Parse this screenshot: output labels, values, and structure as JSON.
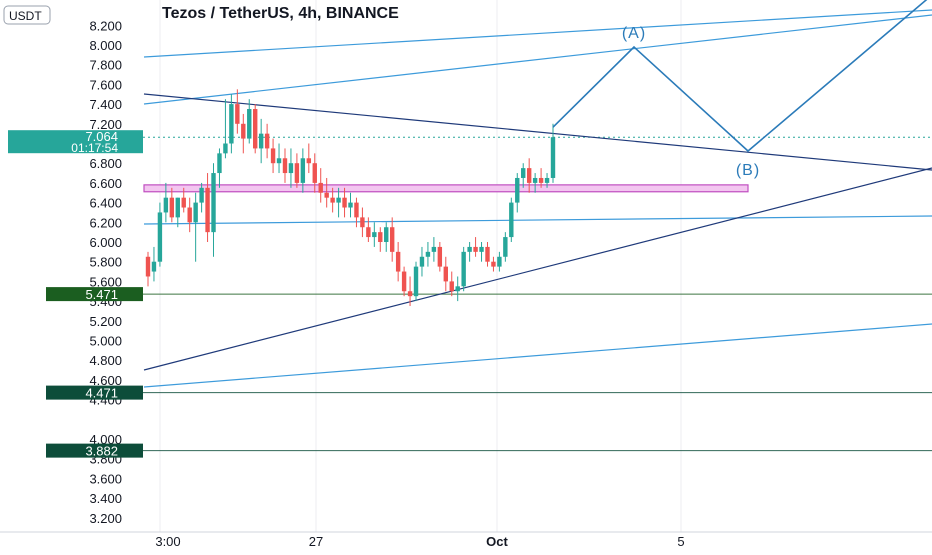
{
  "header": {
    "title": "Tezos / TetherUS, 4h, BINANCE",
    "currency_label": "USDT"
  },
  "price_axis": {
    "ticks": [
      "8.200",
      "8.000",
      "7.800",
      "7.600",
      "7.400",
      "7.200",
      "6.800",
      "6.600",
      "6.400",
      "6.200",
      "6.000",
      "5.800",
      "5.600",
      "5.400",
      "5.200",
      "5.000",
      "4.800",
      "4.600",
      "4.400",
      "4.000",
      "3.800",
      "3.600",
      "3.400",
      "3.200"
    ],
    "current_price": {
      "value": "7.064",
      "countdown": "01:17:54",
      "color": "#26a69a"
    },
    "levels": [
      {
        "label": "5.471",
        "color": "#1b5e20"
      },
      {
        "label": "4.471",
        "color": "#0d4d3a"
      },
      {
        "label": "3.882",
        "color": "#0d4d3a"
      }
    ]
  },
  "time_axis": {
    "labels": [
      "3:00",
      "27",
      "Oct",
      "5"
    ]
  },
  "annotations": {
    "wave_a": "(A)",
    "wave_b": "(B)"
  },
  "colors": {
    "up": "#26a69a",
    "down": "#ef5350",
    "trendline_light": "#3d9bdb",
    "trendline_dark": "#1f3a7a",
    "zone_fill": "#f3c6f0",
    "zone_border": "#c04fc0",
    "wave": "#2b7bb9"
  },
  "chart_data": {
    "type": "candlestick",
    "title": "Tezos / TetherUS, 4h, BINANCE",
    "y_unit": "USDT",
    "ylim": [
      3.1,
      8.25
    ],
    "grid": false,
    "x_labels": [
      "3:00",
      "27",
      "Oct",
      "5"
    ],
    "ohlc": [
      [
        5.85,
        5.9,
        5.55,
        5.65
      ],
      [
        5.7,
        5.95,
        5.6,
        5.8
      ],
      [
        5.8,
        6.4,
        5.75,
        6.3
      ],
      [
        6.3,
        6.6,
        6.2,
        6.45
      ],
      [
        6.45,
        6.55,
        6.2,
        6.25
      ],
      [
        6.25,
        6.45,
        6.15,
        6.45
      ],
      [
        6.45,
        6.55,
        6.3,
        6.35
      ],
      [
        6.35,
        6.45,
        6.1,
        6.2
      ],
      [
        6.2,
        6.5,
        5.8,
        6.4
      ],
      [
        6.4,
        6.6,
        6.3,
        6.55
      ],
      [
        6.55,
        6.7,
        6.0,
        6.1
      ],
      [
        6.1,
        6.8,
        5.85,
        6.7
      ],
      [
        6.7,
        6.95,
        6.55,
        6.9
      ],
      [
        6.9,
        7.45,
        6.85,
        7.0
      ],
      [
        7.0,
        7.5,
        6.9,
        7.4
      ],
      [
        7.4,
        7.55,
        7.1,
        7.2
      ],
      [
        7.2,
        7.3,
        6.9,
        7.05
      ],
      [
        7.05,
        7.45,
        7.0,
        7.35
      ],
      [
        7.35,
        7.4,
        6.9,
        6.95
      ],
      [
        6.95,
        7.25,
        6.8,
        7.1
      ],
      [
        7.1,
        7.2,
        6.85,
        6.95
      ],
      [
        6.95,
        7.05,
        6.7,
        6.8
      ],
      [
        6.8,
        7.0,
        6.7,
        6.85
      ],
      [
        6.85,
        6.95,
        6.6,
        6.7
      ],
      [
        6.7,
        6.95,
        6.55,
        6.8
      ],
      [
        6.8,
        6.9,
        6.55,
        6.6
      ],
      [
        6.6,
        6.95,
        6.5,
        6.85
      ],
      [
        6.85,
        7.0,
        6.7,
        6.8
      ],
      [
        6.8,
        6.9,
        6.5,
        6.6
      ],
      [
        6.6,
        6.75,
        6.4,
        6.5
      ],
      [
        6.5,
        6.65,
        6.35,
        6.45
      ],
      [
        6.45,
        6.55,
        6.3,
        6.4
      ],
      [
        6.4,
        6.55,
        6.25,
        6.45
      ],
      [
        6.45,
        6.55,
        6.25,
        6.35
      ],
      [
        6.35,
        6.5,
        6.25,
        6.4
      ],
      [
        6.4,
        6.45,
        6.15,
        6.25
      ],
      [
        6.25,
        6.35,
        6.05,
        6.15
      ],
      [
        6.15,
        6.25,
        6.0,
        6.05
      ],
      [
        6.05,
        6.2,
        5.95,
        6.1
      ],
      [
        6.1,
        6.15,
        5.9,
        6.0
      ],
      [
        6.0,
        6.2,
        5.9,
        6.15
      ],
      [
        6.15,
        6.25,
        5.8,
        5.9
      ],
      [
        5.9,
        6.0,
        5.6,
        5.7
      ],
      [
        5.7,
        5.75,
        5.45,
        5.5
      ],
      [
        5.5,
        5.65,
        5.35,
        5.45
      ],
      [
        5.45,
        5.8,
        5.4,
        5.75
      ],
      [
        5.75,
        5.95,
        5.65,
        5.85
      ],
      [
        5.85,
        6.0,
        5.75,
        5.9
      ],
      [
        5.9,
        6.05,
        5.8,
        5.95
      ],
      [
        5.95,
        6.0,
        5.7,
        5.75
      ],
      [
        5.75,
        5.85,
        5.5,
        5.6
      ],
      [
        5.6,
        5.7,
        5.45,
        5.5
      ],
      [
        5.5,
        5.65,
        5.4,
        5.55
      ],
      [
        5.55,
        5.95,
        5.5,
        5.9
      ],
      [
        5.9,
        6.0,
        5.8,
        5.95
      ],
      [
        5.95,
        6.05,
        5.85,
        5.9
      ],
      [
        5.9,
        6.0,
        5.8,
        5.95
      ],
      [
        5.95,
        6.0,
        5.75,
        5.8
      ],
      [
        5.8,
        5.85,
        5.7,
        5.75
      ],
      [
        5.75,
        5.9,
        5.7,
        5.85
      ],
      [
        5.85,
        6.1,
        5.8,
        6.05
      ],
      [
        6.05,
        6.45,
        6.0,
        6.4
      ],
      [
        6.4,
        6.7,
        6.3,
        6.65
      ],
      [
        6.65,
        6.8,
        6.55,
        6.75
      ],
      [
        6.75,
        6.85,
        6.5,
        6.6
      ],
      [
        6.6,
        6.7,
        6.5,
        6.65
      ],
      [
        6.65,
        6.75,
        6.55,
        6.6
      ],
      [
        6.6,
        6.7,
        6.55,
        6.65
      ],
      [
        6.65,
        7.2,
        6.6,
        7.064
      ]
    ],
    "support_zone": [
      6.51,
      6.58
    ],
    "horizontal_levels": [
      5.471,
      4.471,
      3.882
    ],
    "current_price": 7.064
  }
}
